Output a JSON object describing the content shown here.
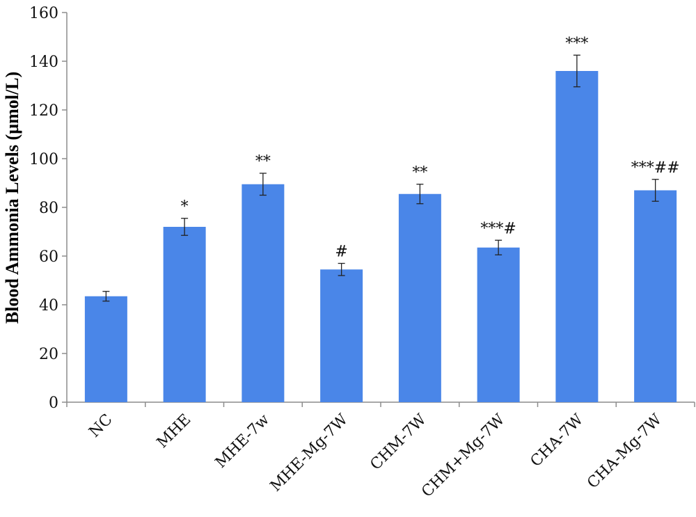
{
  "chart_data": {
    "type": "bar",
    "title": "",
    "xlabel": "",
    "ylabel": "Blood Ammonia Levels (µmol/L)",
    "ylim": [
      0,
      160
    ],
    "yticks": [
      0,
      20,
      40,
      60,
      80,
      100,
      120,
      140,
      160
    ],
    "grid": false,
    "legend": "none",
    "bar_color": "#4A86E8",
    "categories": [
      "NC",
      "MHE",
      "MHE-7w",
      "MHE-Mg-7W",
      "CHM-7W",
      "CHM+Mg-7W",
      "CHA-7W",
      "CHA-Mg-7W"
    ],
    "values": [
      43.5,
      72,
      89.5,
      54.5,
      85.5,
      63.5,
      136,
      87
    ],
    "errors": [
      2,
      3.5,
      4.5,
      2.5,
      4,
      3,
      6.5,
      4.5
    ],
    "significance": [
      "",
      "*",
      "**",
      "#",
      "**",
      "***#",
      "***",
      "***##"
    ]
  }
}
